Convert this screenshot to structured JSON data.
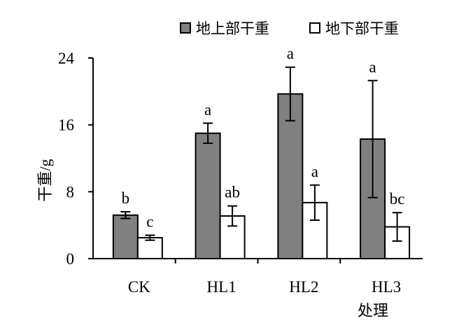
{
  "chart_data": {
    "type": "bar",
    "categories": [
      "CK",
      "HL1",
      "HL2",
      "HL3"
    ],
    "xlabel": "处理",
    "ylabel": "干重/g",
    "ylim": [
      0,
      24
    ],
    "yticks": [
      0,
      8,
      16,
      24
    ],
    "grid": false,
    "legend_position": "top",
    "series": [
      {
        "name": "地上部干重",
        "color": "#808080",
        "values": [
          5.2,
          15.0,
          19.7,
          14.3
        ],
        "errors": [
          0.4,
          1.2,
          3.2,
          7.0
        ],
        "labels": [
          "b",
          "a",
          "a",
          "a"
        ]
      },
      {
        "name": "地下部干重",
        "color": "#ffffff",
        "values": [
          2.5,
          5.1,
          6.7,
          3.8
        ],
        "errors": [
          0.3,
          1.2,
          2.1,
          1.7
        ],
        "labels": [
          "c",
          "ab",
          "a",
          "bc"
        ]
      }
    ]
  }
}
